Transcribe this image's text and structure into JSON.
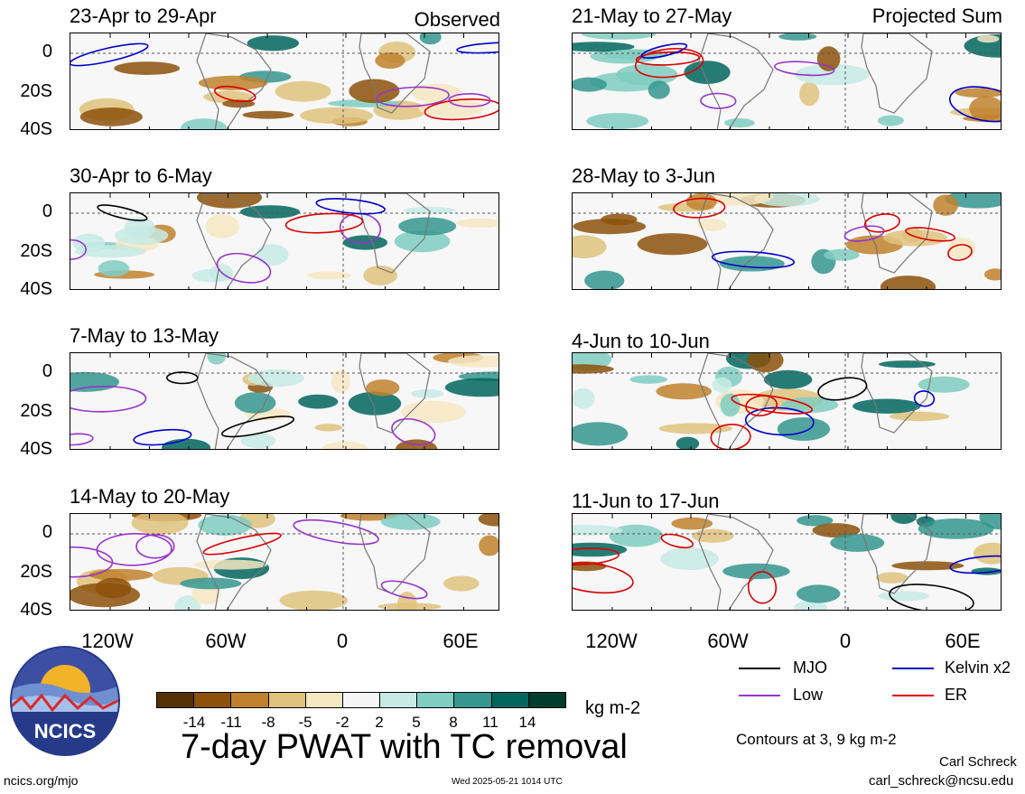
{
  "panels": [
    {
      "title": "23-Apr to 29-Apr",
      "tag": "Observed"
    },
    {
      "title": "30-Apr to 6-May",
      "tag": ""
    },
    {
      "title": "7-May to 13-May",
      "tag": ""
    },
    {
      "title": "14-May to 20-May",
      "tag": ""
    },
    {
      "title": "21-May to 27-May",
      "tag": "Projected Sum"
    },
    {
      "title": "28-May to 3-Jun",
      "tag": ""
    },
    {
      "title": "4-Jun to 10-Jun",
      "tag": ""
    },
    {
      "title": "11-Jun to 17-Jun",
      "tag": ""
    }
  ],
  "yaxis_labels": [
    "0",
    "20S",
    "40S"
  ],
  "xaxis_labels": [
    "120W",
    "60W",
    "0",
    "60E"
  ],
  "colorbar": {
    "labels": [
      "-14",
      "-11",
      "-8",
      "-5",
      "-2",
      "2",
      "5",
      "8",
      "11",
      "14"
    ],
    "colors": [
      "#543005",
      "#8c510a",
      "#bf812d",
      "#dfc27d",
      "#f6e8c3",
      "#f5f5f5",
      "#c7eae5",
      "#80cdc1",
      "#35978f",
      "#01665e",
      "#003c30"
    ],
    "unit": "kg m-2"
  },
  "legend": {
    "mjo": "MJO",
    "kelvin": "Kelvin x2",
    "low": "Low",
    "er": "ER",
    "colors": {
      "mjo": "#000000",
      "kelvin": "#0000cc",
      "low": "#9933cc",
      "er": "#dd0000"
    }
  },
  "contours_note": "Contours at 3, 9 kg m-2",
  "title": "7-day PWAT with TC removal",
  "logo_text": "NCICS",
  "footer": {
    "left": "ncics.org/mjo",
    "center": "Wed 2025-05-21 1014 UTC",
    "author": "Carl Schreck",
    "email": "carl_schreck@ncsu.edu"
  }
}
